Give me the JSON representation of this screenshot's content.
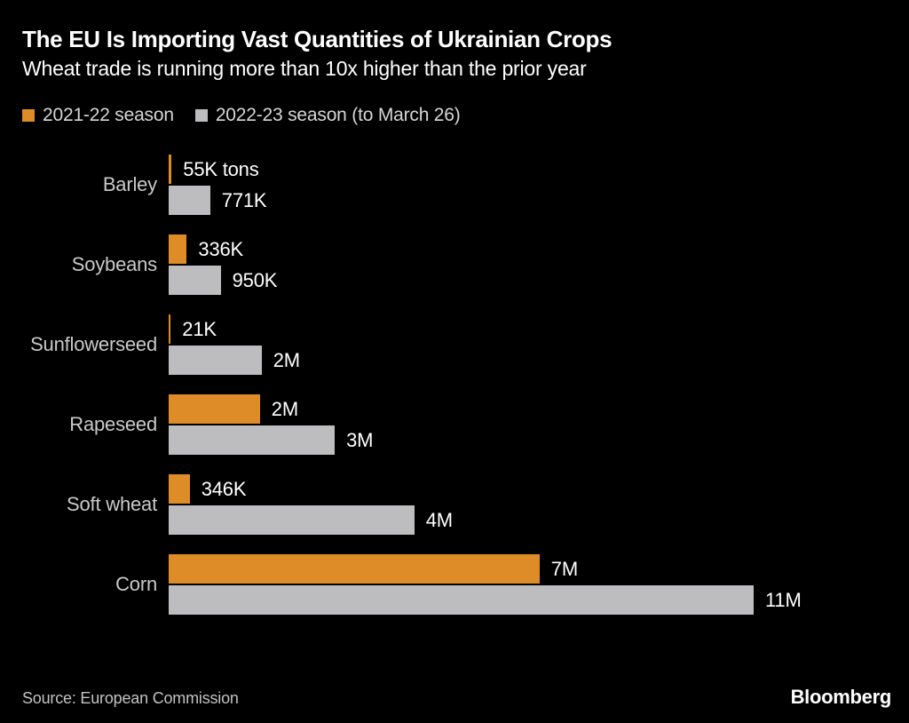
{
  "header": {
    "title": "The EU Is Importing Vast Quantities of Ukrainian Crops",
    "subtitle": "Wheat trade is running more than 10x higher than the prior year"
  },
  "legend": [
    {
      "label": "2021-22 season",
      "color": "#DD8C28"
    },
    {
      "label": "2022-23 season (to March 26)",
      "color": "#BDBDBF"
    }
  ],
  "chart_data": {
    "type": "bar",
    "orientation": "horizontal",
    "unit": "tons",
    "title": "The EU Is Importing Vast Quantities of Ukrainian Crops",
    "subtitle": "Wheat trade is running more than 10x higher than the prior year",
    "categories": [
      "Barley",
      "Soybeans",
      "Sunflowerseed",
      "Rapeseed",
      "Soft wheat",
      "Corn"
    ],
    "series": [
      {
        "name": "2021-22 season",
        "color": "#DD8C28",
        "values": [
          55000,
          336000,
          21000,
          2000000,
          346000,
          7000000
        ],
        "labels": [
          "55K tons",
          "336K",
          "21K",
          "2M",
          "346K",
          "7M"
        ]
      },
      {
        "name": "2022-23 season (to March 26)",
        "color": "#BDBDBF",
        "values": [
          771000,
          950000,
          2000000,
          3000000,
          4000000,
          11000000
        ],
        "labels": [
          "771K",
          "950K",
          "2M",
          "3M",
          "4M",
          "11M"
        ]
      }
    ],
    "xlim": [
      0,
      11000000
    ],
    "grid": false,
    "legend_position": "top",
    "display_width_pct": [
      [
        0.5,
        3.1,
        0.35,
        15.6,
        3.6,
        63.4
      ],
      [
        7.1,
        8.9,
        15.9,
        28.4,
        42.0,
        100
      ]
    ]
  },
  "footer": {
    "source": "Source: European Commission",
    "brand": "Bloomberg"
  }
}
